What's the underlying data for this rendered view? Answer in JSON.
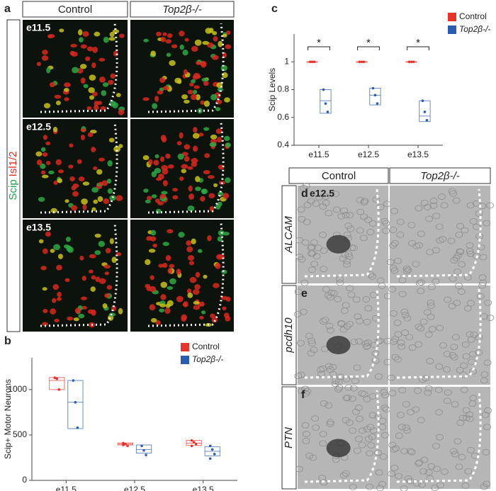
{
  "figure": {
    "panel_labels": [
      "a",
      "b",
      "c",
      "d",
      "e",
      "f"
    ],
    "panel_a": {
      "columns": [
        "Control",
        "Top2β-/-"
      ],
      "rows": [
        "e11.5",
        "e12.5",
        "e13.5"
      ],
      "stain_green": "Scip",
      "stain_red": "Isl1/2"
    },
    "panel_def": {
      "columns": [
        "Control",
        "Top2β-/-"
      ],
      "rows": [
        "ALCAM",
        "pcdh10",
        "PTN"
      ],
      "stage": "e12.5"
    }
  },
  "chart_data": [
    {
      "type": "box",
      "ylabel": "Scip+ Motor Neurons",
      "categories": [
        "e11.5",
        "e12.5",
        "e13.5"
      ],
      "ylim": [
        0,
        1350
      ],
      "yticks": [
        0,
        500,
        1000
      ],
      "legend": "top-right",
      "series": [
        {
          "name": "Control",
          "color": "#e8332b",
          "values": [
            {
              "q1": 1000,
              "median": 1100,
              "q3": 1133,
              "points": [
                1130,
                1120,
                1000
              ]
            },
            {
              "q1": 390,
              "median": 400,
              "q3": 412,
              "points": [
                410,
                400,
                380,
                390
              ]
            },
            {
              "q1": 385,
              "median": 410,
              "q3": 440,
              "points": [
                440,
                420,
                400,
                380
              ]
            }
          ]
        },
        {
          "name": "Top2β-/-",
          "color": "#2a5db0",
          "values": [
            {
              "q1": 570,
              "median": 860,
              "q3": 1100,
              "points": [
                1100,
                860,
                580
              ]
            },
            {
              "q1": 300,
              "median": 340,
              "q3": 390,
              "points": [
                380,
                330,
                280
              ]
            },
            {
              "q1": 270,
              "median": 320,
              "q3": 370,
              "points": [
                380,
                340,
                290,
                240
              ]
            }
          ]
        }
      ]
    },
    {
      "type": "box",
      "ylabel": "Scip Levels",
      "categories": [
        "e11.5",
        "e12.5",
        "e13.5"
      ],
      "ylim": [
        0.4,
        1.2
      ],
      "yticks": [
        0.4,
        0.6,
        0.8,
        1
      ],
      "legend": "top-right",
      "significance": [
        "*",
        "*",
        "*"
      ],
      "series": [
        {
          "name": "Control",
          "color": "#e8332b",
          "values": [
            {
              "q1": 1,
              "median": 1,
              "q3": 1,
              "points": [
                1,
                1,
                1
              ]
            },
            {
              "q1": 1,
              "median": 1,
              "q3": 1,
              "points": [
                1,
                1,
                1
              ]
            },
            {
              "q1": 1,
              "median": 1,
              "q3": 1,
              "points": [
                1,
                1,
                1
              ]
            }
          ]
        },
        {
          "name": "Top2β-/-",
          "color": "#2a5db0",
          "values": [
            {
              "q1": 0.63,
              "median": 0.72,
              "q3": 0.8,
              "points": [
                0.8,
                0.7,
                0.64
              ]
            },
            {
              "q1": 0.69,
              "median": 0.76,
              "q3": 0.81,
              "points": [
                0.81,
                0.76,
                0.7
              ]
            },
            {
              "q1": 0.57,
              "median": 0.61,
              "q3": 0.72,
              "points": [
                0.72,
                0.64,
                0.58
              ]
            }
          ]
        }
      ]
    }
  ]
}
